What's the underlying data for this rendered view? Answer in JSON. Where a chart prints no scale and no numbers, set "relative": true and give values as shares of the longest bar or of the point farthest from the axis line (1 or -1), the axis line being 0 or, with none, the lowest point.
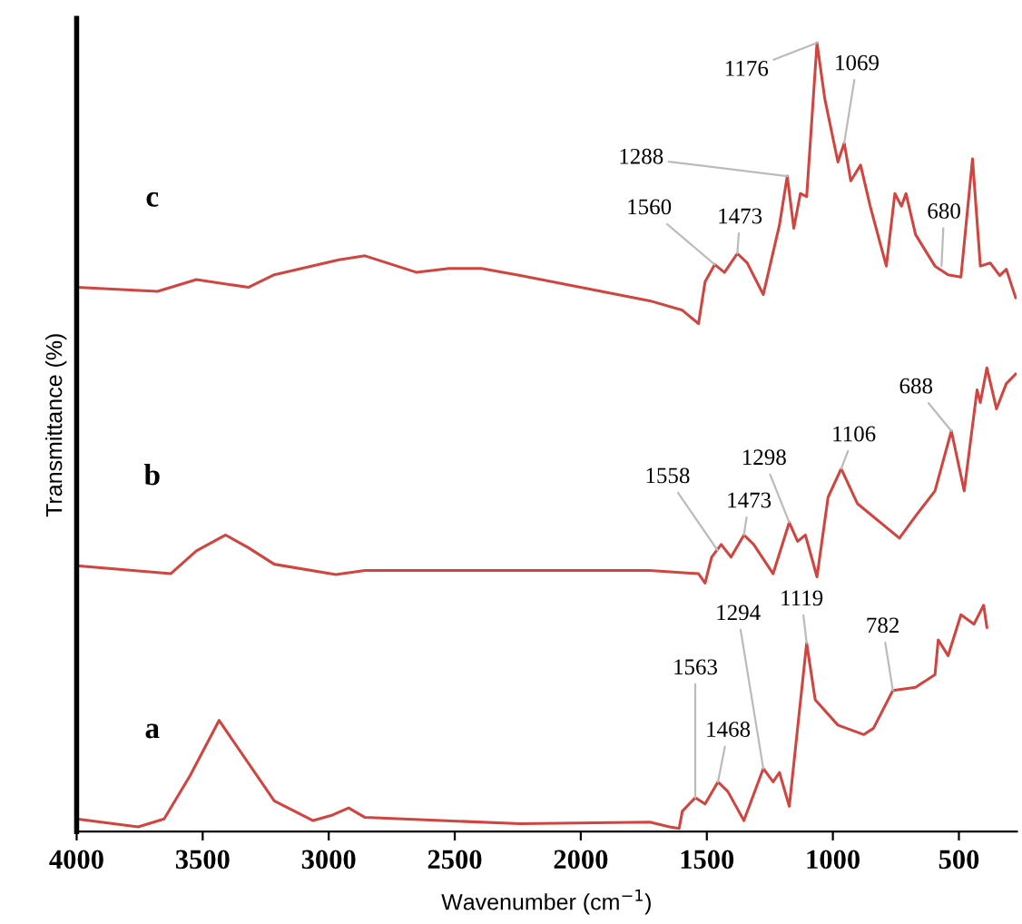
{
  "chart_data": {
    "type": "line",
    "relative": true,
    "xlabel": "Wavenumber (cm$^{−1}$)",
    "ylabel": "Transmittance (%)",
    "xlim": [
      4000,
      270
    ],
    "xticks": [
      4000,
      3500,
      3000,
      2500,
      2000,
      1500,
      1000,
      500
    ],
    "tick_labels": "x",
    "grid": false,
    "legend": false,
    "marker": "none",
    "line_style": "solid",
    "series": [
      {
        "name": "c",
        "color": "#d0453f",
        "x": [
          4000,
          3679,
          3525,
          3319,
          3216,
          2960,
          2856,
          2651,
          2522,
          2394,
          2240,
          1983,
          1726,
          1597,
          1533,
          1507,
          1469,
          1430,
          1379,
          1340,
          1276,
          1212,
          1181,
          1155,
          1129,
          1104,
          1063,
          1032,
          980,
          955,
          929,
          890,
          852,
          788,
          754,
          728,
          710,
          672,
          595,
          543,
          492,
          446,
          415,
          376,
          338,
          312,
          275
        ],
        "values": [
          0.69,
          0.685,
          0.7,
          0.69,
          0.706,
          0.725,
          0.73,
          0.709,
          0.714,
          0.714,
          0.705,
          0.689,
          0.673,
          0.661,
          0.644,
          0.697,
          0.719,
          0.709,
          0.733,
          0.721,
          0.681,
          0.769,
          0.831,
          0.765,
          0.809,
          0.805,
          1.0,
          0.929,
          0.849,
          0.873,
          0.825,
          0.845,
          0.793,
          0.717,
          0.809,
          0.793,
          0.809,
          0.757,
          0.717,
          0.706,
          0.703,
          0.853,
          0.717,
          0.721,
          0.705,
          0.713,
          0.677
        ]
      },
      {
        "name": "b",
        "color": "#d0453f",
        "x": [
          4000,
          3627,
          3525,
          3409,
          3319,
          3216,
          2972,
          2856,
          2240,
          1726,
          1533,
          1507,
          1481,
          1443,
          1404,
          1353,
          1314,
          1237,
          1173,
          1140,
          1109,
          1063,
          1019,
          967,
          903,
          736,
          672,
          595,
          530,
          479,
          428,
          415,
          389,
          351,
          312,
          275
        ],
        "values": [
          0.337,
          0.327,
          0.356,
          0.376,
          0.36,
          0.339,
          0.326,
          0.331,
          0.331,
          0.331,
          0.327,
          0.315,
          0.348,
          0.364,
          0.348,
          0.376,
          0.364,
          0.327,
          0.392,
          0.368,
          0.376,
          0.323,
          0.424,
          0.46,
          0.416,
          0.372,
          0.4,
          0.432,
          0.508,
          0.432,
          0.56,
          0.544,
          0.588,
          0.536,
          0.568,
          0.58
        ]
      },
      {
        "name": "a",
        "color": "#d0453f",
        "x": [
          4000,
          3756,
          3653,
          3550,
          3435,
          3319,
          3216,
          3062,
          2985,
          2921,
          2856,
          2240,
          1726,
          1648,
          1610,
          1597,
          1546,
          1507,
          1456,
          1417,
          1353,
          1276,
          1237,
          1212,
          1173,
          1104,
          1070,
          980,
          877,
          839,
          762,
          672,
          595,
          582,
          543,
          492,
          440,
          402,
          389
        ],
        "values": [
          0.016,
          0.006,
          0.016,
          0.071,
          0.141,
          0.087,
          0.039,
          0.014,
          0.021,
          0.03,
          0.018,
          0.01,
          0.012,
          0.006,
          0.004,
          0.026,
          0.043,
          0.035,
          0.063,
          0.051,
          0.014,
          0.08,
          0.063,
          0.075,
          0.032,
          0.239,
          0.167,
          0.135,
          0.123,
          0.131,
          0.179,
          0.183,
          0.199,
          0.243,
          0.223,
          0.275,
          0.263,
          0.287,
          0.259
        ]
      }
    ],
    "annotations": [
      {
        "text": "1176",
        "x": 1063,
        "y": 1.0
      },
      {
        "text": "1069",
        "x": 955,
        "y": 0.873
      },
      {
        "text": "1288",
        "x": 1181,
        "y": 0.831
      },
      {
        "text": "1560",
        "x": 1469,
        "y": 0.719
      },
      {
        "text": "1473",
        "x": 1379,
        "y": 0.733
      },
      {
        "text": "680",
        "x": 569,
        "y": 0.717
      },
      {
        "text": "688",
        "x": 530,
        "y": 0.508
      },
      {
        "text": "1106",
        "x": 967,
        "y": 0.46
      },
      {
        "text": "1298",
        "x": 1173,
        "y": 0.392
      },
      {
        "text": "1558",
        "x": 1456,
        "y": 0.356
      },
      {
        "text": "1473",
        "x": 1353,
        "y": 0.376
      },
      {
        "text": "1119",
        "x": 1104,
        "y": 0.239
      },
      {
        "text": "782",
        "x": 762,
        "y": 0.179
      },
      {
        "text": "1294",
        "x": 1276,
        "y": 0.08
      },
      {
        "text": "1563",
        "x": 1546,
        "y": 0.043
      },
      {
        "text": "1468",
        "x": 1456,
        "y": 0.063
      }
    ]
  }
}
